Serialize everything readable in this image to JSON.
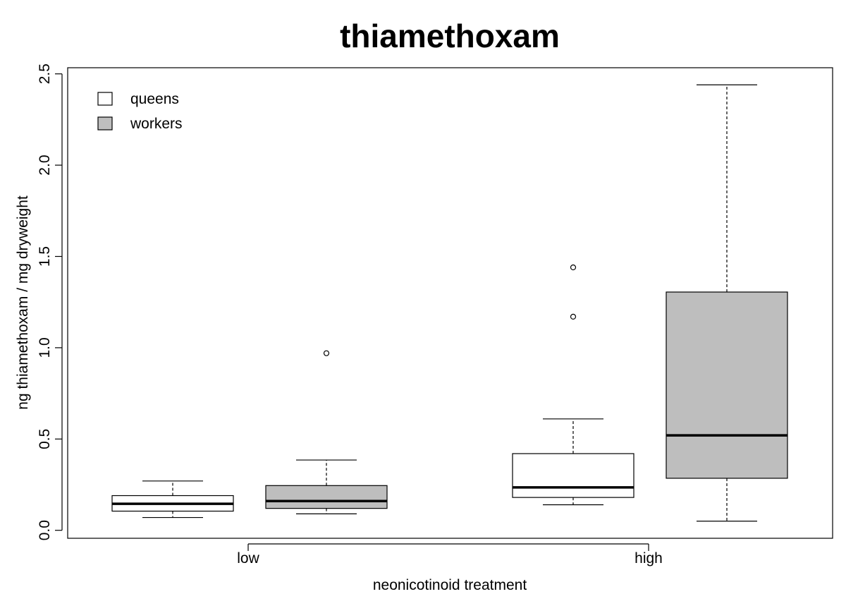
{
  "chart_data": {
    "type": "boxplot",
    "title": "thiamethoxam",
    "xlabel": "neonicotinoid treatment",
    "ylabel": "ng thiamethoxam / mg dryweight",
    "ylim": [
      0,
      2.5
    ],
    "yticks": [
      "0.0",
      "0.5",
      "1.0",
      "1.5",
      "2.0",
      "2.5"
    ],
    "categories": [
      "low",
      "high"
    ],
    "legend": {
      "position": "top-left",
      "entries": [
        {
          "label": "queens",
          "color": "#ffffff"
        },
        {
          "label": "workers",
          "color": "#bebebe"
        }
      ]
    },
    "series": [
      {
        "name": "queens",
        "color": "#ffffff",
        "boxes": [
          {
            "category": "low",
            "whisker_low": 0.07,
            "q1": 0.105,
            "median": 0.145,
            "q3": 0.19,
            "whisker_high": 0.27,
            "outliers": []
          },
          {
            "category": "high",
            "whisker_low": 0.14,
            "q1": 0.18,
            "median": 0.235,
            "q3": 0.42,
            "whisker_high": 0.61,
            "outliers": [
              1.17,
              1.44
            ]
          }
        ]
      },
      {
        "name": "workers",
        "color": "#bebebe",
        "boxes": [
          {
            "category": "low",
            "whisker_low": 0.09,
            "q1": 0.12,
            "median": 0.16,
            "q3": 0.245,
            "whisker_high": 0.385,
            "outliers": [
              0.97
            ]
          },
          {
            "category": "high",
            "whisker_low": 0.05,
            "q1": 0.285,
            "median": 0.52,
            "q3": 1.305,
            "whisker_high": 2.44,
            "outliers": []
          }
        ]
      }
    ]
  }
}
